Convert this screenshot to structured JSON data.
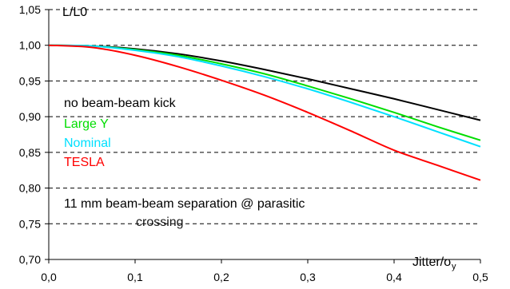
{
  "chart_data": {
    "type": "line",
    "ylabel": "L/L0",
    "xlabel": "Jitter/σy",
    "xlim": [
      0.0,
      0.5
    ],
    "ylim": [
      0.7,
      1.05
    ],
    "grid": "horizontal-dashed",
    "x_ticks": [
      "0,0",
      "0,1",
      "0,2",
      "0,3",
      "0,4",
      "0,5"
    ],
    "y_ticks": [
      "1,05",
      "1,00",
      "0,95",
      "0,90",
      "0,85",
      "0,80",
      "0,75",
      "0,70"
    ],
    "x": [
      0.0,
      0.05,
      0.1,
      0.15,
      0.2,
      0.25,
      0.3,
      0.35,
      0.4,
      0.45,
      0.5
    ],
    "series": [
      {
        "name": "no beam-beam kick",
        "color": "#000000",
        "values": [
          1.0,
          0.999,
          0.995,
          0.988,
          0.978,
          0.966,
          0.953,
          0.939,
          0.925,
          0.91,
          0.895
        ]
      },
      {
        "name": "Large Y",
        "color": "#00dd00",
        "values": [
          1.0,
          0.999,
          0.994,
          0.986,
          0.974,
          0.96,
          0.943,
          0.925,
          0.906,
          0.886,
          0.867
        ]
      },
      {
        "name": "Nominal",
        "color": "#00e0ff",
        "values": [
          1.0,
          0.999,
          0.993,
          0.984,
          0.971,
          0.956,
          0.939,
          0.92,
          0.9,
          0.879,
          0.858
        ]
      },
      {
        "name": "TESLA",
        "color": "#ff0000",
        "values": [
          1.0,
          0.997,
          0.986,
          0.97,
          0.951,
          0.93,
          0.906,
          0.88,
          0.853,
          0.832,
          0.811
        ]
      }
    ],
    "annotations": {
      "kick_label": "no beam-beam kick",
      "separation_label": "11 mm beam-beam separation @ parasitic",
      "separation_label_cont": "crossing"
    }
  }
}
